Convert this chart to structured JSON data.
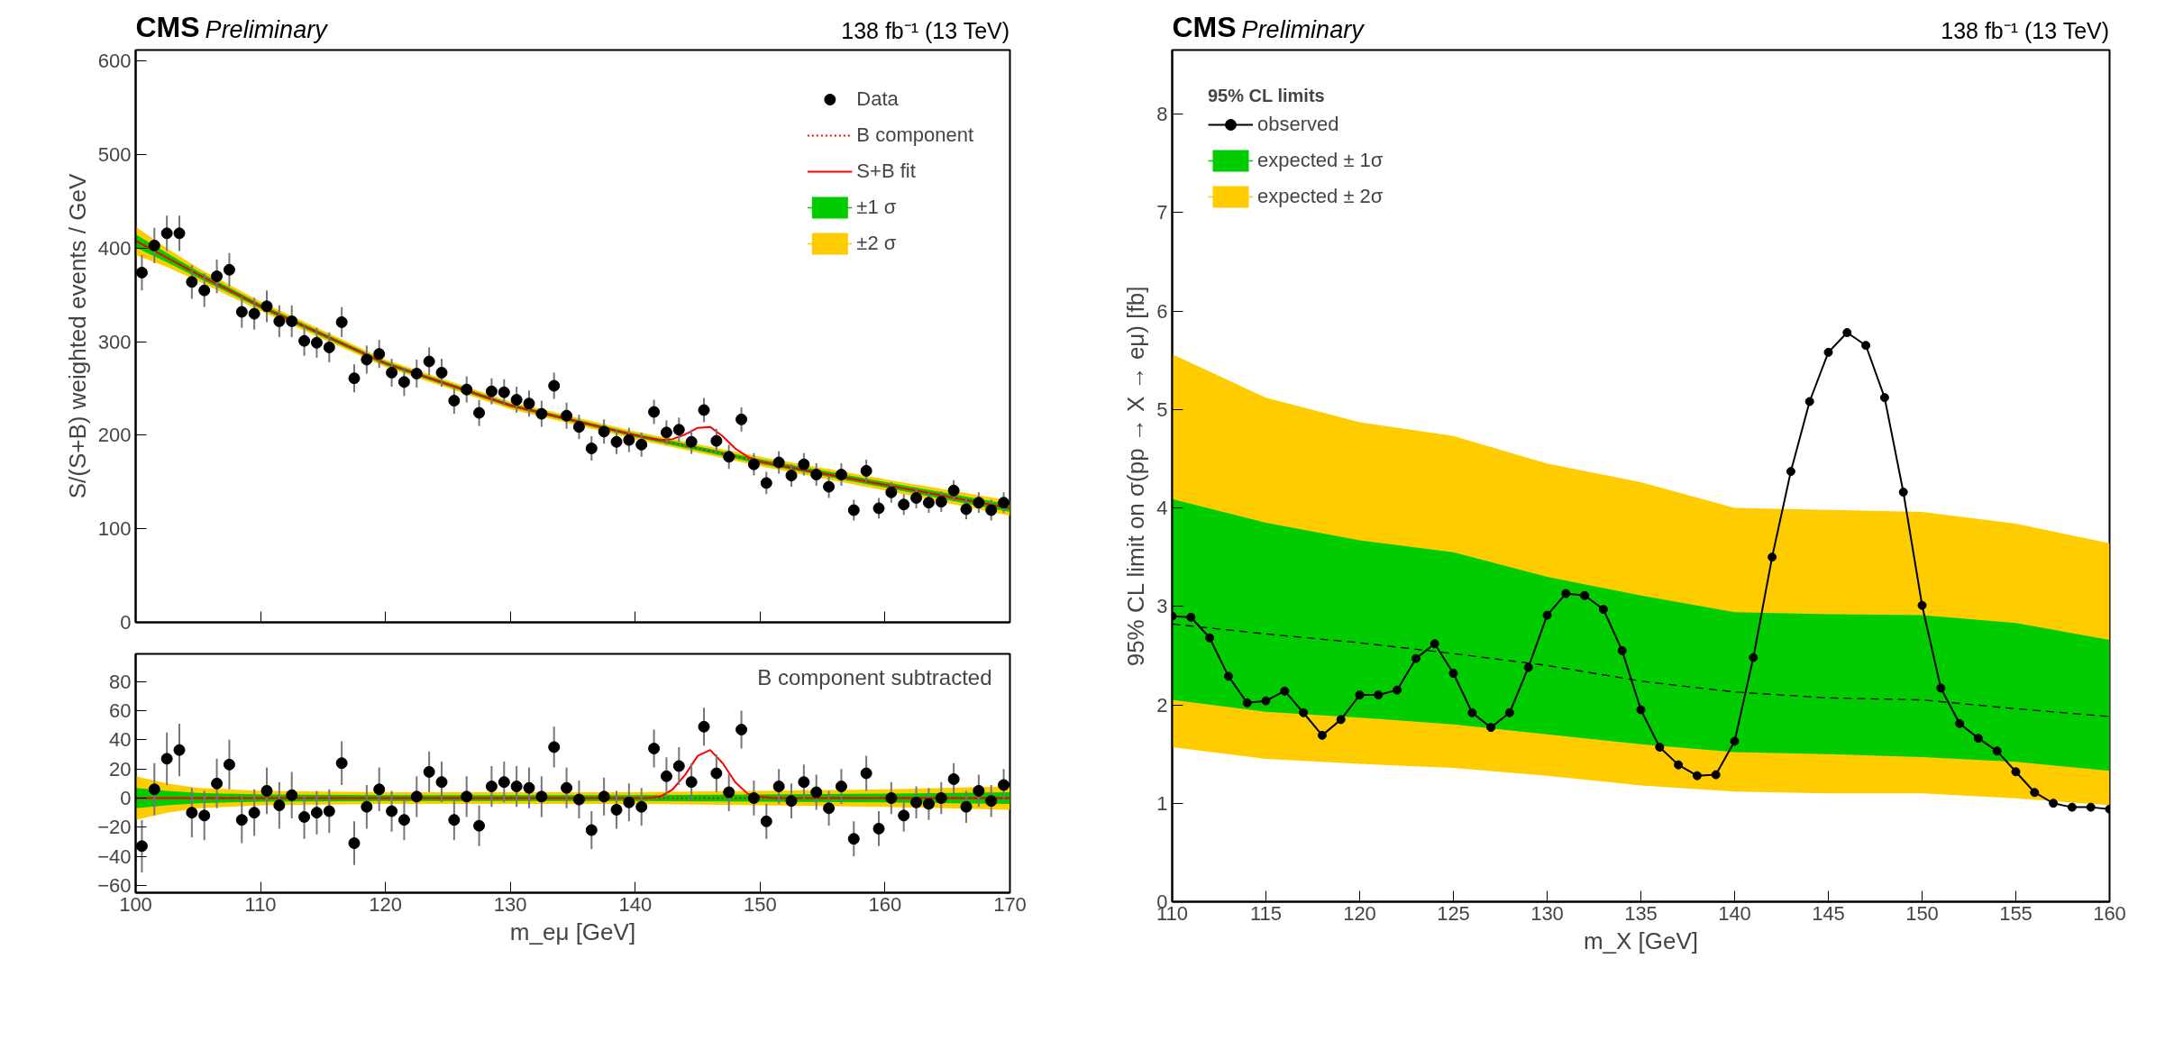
{
  "chart_data": [
    {
      "type": "scatter",
      "title": "CMS",
      "subtitle": "Preliminary",
      "annotations": [
        "138 fb⁻¹ (13 TeV)"
      ],
      "ylabel": "S/(S+B) weighted events / GeV",
      "xlim": [
        100,
        170
      ],
      "ylim": [
        0,
        612
      ],
      "xticks": [
        100,
        110,
        120,
        130,
        140,
        150,
        160,
        170
      ],
      "yticks": [
        0,
        100,
        200,
        300,
        400,
        500,
        600
      ],
      "tick_labels": "y",
      "grid": false,
      "legend": "top right",
      "x": [
        100.5,
        101.5,
        102.5,
        103.5,
        104.5,
        105.5,
        106.5,
        107.5,
        108.5,
        109.5,
        110.5,
        111.5,
        112.5,
        113.5,
        114.5,
        115.5,
        116.5,
        117.5,
        118.5,
        119.5,
        120.5,
        121.5,
        122.5,
        123.5,
        124.5,
        125.5,
        126.5,
        127.5,
        128.5,
        129.5,
        130.5,
        131.5,
        132.5,
        133.5,
        134.5,
        135.5,
        136.5,
        137.5,
        138.5,
        139.5,
        140.5,
        141.5,
        142.5,
        143.5,
        144.5,
        145.5,
        146.5,
        147.5,
        148.5,
        149.5,
        150.5,
        151.5,
        152.5,
        153.5,
        154.5,
        155.5,
        156.5,
        157.5,
        158.5,
        159.5,
        160.5,
        161.5,
        162.5,
        163.5,
        164.5,
        165.5,
        166.5,
        167.5,
        168.5,
        169.5
      ],
      "series": [
        {
          "type": "line",
          "name": "±2 σ",
          "color": "#ffcc00",
          "x": [
            100,
            102.5,
            105,
            110,
            120,
            130,
            140,
            150,
            160,
            170
          ],
          "values": [
            null,
            null,
            null,
            null,
            null,
            null,
            null,
            null,
            null,
            null
          ],
          "lower": [
            393,
            380,
            365,
            333,
            273,
            228,
            196,
            167,
            141,
            114
          ],
          "upper": [
            423,
            400,
            379,
            343,
            281,
            236,
            204,
            177,
            153,
            130
          ]
        },
        {
          "type": "line",
          "name": "±1 σ",
          "color": "#00cc00",
          "x": [
            100,
            102.5,
            105,
            110,
            120,
            130,
            140,
            150,
            160,
            170
          ],
          "values": [
            null,
            null,
            null,
            null,
            null,
            null,
            null,
            null,
            null,
            null
          ],
          "lower": [
            401,
            385,
            368.5,
            335.5,
            275,
            230,
            198,
            169.5,
            144,
            118
          ],
          "upper": [
            415,
            395,
            375.5,
            340.5,
            279,
            234,
            202,
            174.5,
            150,
            126
          ]
        },
        {
          "type": "line",
          "name": "S+B fit",
          "color": "#ff0000",
          "line_style": "solid",
          "x": [
            100,
            102.5,
            105,
            110,
            120,
            130,
            140,
            141,
            142,
            143,
            144,
            145,
            146,
            147,
            148,
            149,
            150,
            151,
            160,
            170
          ],
          "values": [
            408,
            390,
            372,
            338,
            277,
            232,
            200,
            197,
            195,
            196,
            201,
            208,
            209,
            199,
            186,
            177,
            172,
            169,
            147,
            122
          ]
        },
        {
          "type": "line",
          "name": "B component",
          "color": "#ff0000",
          "line_style": "dotted",
          "x": [
            100,
            102.5,
            105,
            110,
            120,
            130,
            140,
            150,
            160,
            170
          ],
          "values": [
            408,
            390,
            372,
            338,
            277,
            232,
            200,
            172,
            147,
            122
          ]
        },
        {
          "name": "Data",
          "color": "#000000",
          "marker": "circle",
          "values": [
            374,
            403,
            416,
            416,
            364,
            355,
            370,
            377,
            332,
            330,
            338,
            322,
            322,
            301,
            299,
            294,
            321,
            261,
            281,
            287,
            267,
            257,
            266,
            279,
            267,
            237,
            249,
            224,
            247,
            246,
            238,
            234,
            223,
            253,
            221,
            209,
            186,
            204,
            193,
            195,
            190,
            225,
            203,
            206,
            193,
            227,
            194,
            177,
            217,
            169,
            149,
            171,
            157,
            169,
            158,
            145,
            158,
            120,
            162,
            122,
            139,
            126,
            133,
            128,
            129,
            141,
            121,
            128,
            120,
            128
          ],
          "errors": [
            19,
            19,
            19,
            19,
            18,
            18,
            18,
            18,
            17,
            17,
            17,
            17,
            17,
            16,
            16,
            16,
            16,
            15,
            15,
            15,
            15,
            15,
            15,
            15,
            15,
            14,
            14,
            14,
            14,
            14,
            14,
            14,
            14,
            14,
            14,
            13,
            13,
            13,
            13,
            13,
            13,
            13,
            13,
            13,
            13,
            13,
            13,
            13,
            13,
            12,
            12,
            12,
            12,
            12,
            12,
            12,
            12,
            11,
            12,
            11,
            11,
            11,
            11,
            11,
            11,
            11,
            11,
            11,
            11,
            11
          ]
        }
      ]
    },
    {
      "type": "scatter",
      "annotations": [
        "B component subtracted"
      ],
      "xlabel": "m_eμ [GeV]",
      "xlim": [
        100,
        170
      ],
      "ylim": [
        -65,
        99
      ],
      "xticks": [
        100,
        110,
        120,
        130,
        140,
        150,
        160,
        170
      ],
      "yticks": [
        -60,
        -40,
        -20,
        0,
        20,
        40,
        60,
        80
      ],
      "grid": false,
      "x": [
        100.5,
        101.5,
        102.5,
        103.5,
        104.5,
        105.5,
        106.5,
        107.5,
        108.5,
        109.5,
        110.5,
        111.5,
        112.5,
        113.5,
        114.5,
        115.5,
        116.5,
        117.5,
        118.5,
        119.5,
        120.5,
        121.5,
        122.5,
        123.5,
        124.5,
        125.5,
        126.5,
        127.5,
        128.5,
        129.5,
        130.5,
        131.5,
        132.5,
        133.5,
        134.5,
        135.5,
        136.5,
        137.5,
        138.5,
        139.5,
        140.5,
        141.5,
        142.5,
        143.5,
        144.5,
        145.5,
        146.5,
        147.5,
        148.5,
        149.5,
        150.5,
        151.5,
        152.5,
        153.5,
        154.5,
        155.5,
        156.5,
        157.5,
        158.5,
        159.5,
        160.5,
        161.5,
        162.5,
        163.5,
        164.5,
        165.5,
        166.5,
        167.5,
        168.5,
        169.5
      ],
      "series": [
        {
          "type": "line",
          "color": "#ffcc00",
          "x": [
            100,
            102.5,
            105,
            110,
            120,
            130,
            140,
            150,
            160,
            170
          ],
          "values": [
            null,
            null,
            null,
            null,
            null,
            null,
            null,
            null,
            null,
            null
          ],
          "lower": [
            -15,
            -10,
            -7,
            -5,
            -4,
            -4,
            -4,
            -5,
            -6,
            -8
          ],
          "upper": [
            15,
            10,
            7,
            5,
            4,
            4,
            4,
            5,
            6,
            8
          ]
        },
        {
          "type": "line",
          "color": "#00cc00",
          "x": [
            100,
            102.5,
            105,
            110,
            120,
            130,
            140,
            150,
            160,
            170
          ],
          "values": [
            null,
            null,
            null,
            null,
            null,
            null,
            null,
            null,
            null,
            null
          ],
          "lower": [
            -7,
            -5,
            -3.5,
            -2.5,
            -2,
            -2,
            -2,
            -2.5,
            -3,
            -4
          ],
          "upper": [
            7,
            5,
            3.5,
            2.5,
            2,
            2,
            2,
            2.5,
            3,
            4
          ]
        },
        {
          "type": "line",
          "color": "#ff0000",
          "line_style": "solid",
          "x": [
            100,
            140,
            141,
            142,
            143,
            144,
            145,
            146,
            147,
            148,
            149,
            150,
            151,
            170
          ],
          "values": [
            0,
            0,
            0,
            1,
            6,
            16,
            29,
            33,
            24,
            11,
            3,
            1,
            0,
            0
          ]
        },
        {
          "type": "line",
          "color": "#ff0000",
          "line_style": "dotted",
          "x": [
            100,
            170
          ],
          "values": [
            0,
            0
          ]
        },
        {
          "color": "#000000",
          "marker": "circle",
          "values": [
            -33,
            6,
            27,
            33,
            -10,
            -12,
            10,
            23,
            -15,
            -10,
            5,
            -5,
            2,
            -13,
            -10,
            -9,
            24,
            -31,
            -6,
            6,
            -9,
            -15,
            1,
            18,
            11,
            -15,
            1,
            -19,
            8,
            11,
            8,
            7,
            1,
            35,
            7,
            -1,
            -22,
            1,
            -8,
            -3,
            -6,
            34,
            15,
            22,
            11,
            49,
            17,
            4,
            47,
            0,
            -16,
            8,
            -2,
            11,
            4,
            -7,
            8,
            -28,
            17,
            -21,
            0,
            -12,
            -3,
            -4,
            0,
            13,
            -6,
            5,
            -2,
            9
          ],
          "errors": [
            18,
            18,
            18,
            18,
            17,
            17,
            17,
            17,
            16,
            16,
            16,
            16,
            16,
            15,
            15,
            15,
            15,
            15,
            15,
            15,
            14,
            14,
            14,
            14,
            14,
            14,
            14,
            14,
            14,
            14,
            14,
            14,
            14,
            14,
            14,
            13,
            13,
            13,
            13,
            13,
            13,
            13,
            13,
            13,
            13,
            13,
            13,
            13,
            13,
            12,
            12,
            12,
            12,
            12,
            12,
            12,
            12,
            12,
            12,
            12,
            11,
            11,
            11,
            11,
            11,
            11,
            11,
            11,
            11,
            11
          ]
        }
      ]
    },
    {
      "type": "line",
      "title": "CMS",
      "subtitle": "Preliminary",
      "annotations": [
        "138 fb⁻¹ (13 TeV)"
      ],
      "ylabel": "95% CL limit on σ(pp → X → eμ) [fb]",
      "xlabel": "m_X [GeV]",
      "legend_title": "95% CL limits",
      "xlim": [
        110,
        160
      ],
      "ylim": [
        0,
        8.65
      ],
      "xticks": [
        110,
        115,
        120,
        125,
        130,
        135,
        140,
        145,
        150,
        155,
        160
      ],
      "yticks": [
        0,
        1,
        2,
        3,
        4,
        5,
        6,
        7,
        8
      ],
      "grid": false,
      "legend": "top left",
      "series": [
        {
          "type": "line",
          "name": "expected ± 2σ",
          "color": "#ffcc00",
          "x": [
            110,
            115,
            120,
            125,
            130,
            135,
            140,
            145,
            150,
            155,
            160
          ],
          "values": [
            null,
            null,
            null,
            null,
            null,
            null,
            null,
            null,
            null,
            null,
            null
          ],
          "lower": [
            1.57,
            1.45,
            1.4,
            1.36,
            1.28,
            1.18,
            1.12,
            1.1,
            1.1,
            1.05,
            0.98
          ],
          "upper": [
            5.56,
            5.12,
            4.87,
            4.73,
            4.45,
            4.26,
            4.0,
            3.98,
            3.96,
            3.84,
            3.64
          ]
        },
        {
          "type": "line",
          "name": "expected ± 1σ",
          "color": "#00cc00",
          "x": [
            110,
            115,
            120,
            125,
            130,
            135,
            140,
            145,
            150,
            155,
            160
          ],
          "values": [
            null,
            null,
            null,
            null,
            null,
            null,
            null,
            null,
            null,
            null,
            null
          ],
          "lower": [
            2.05,
            1.93,
            1.87,
            1.8,
            1.7,
            1.6,
            1.52,
            1.5,
            1.47,
            1.42,
            1.33
          ],
          "upper": [
            4.09,
            3.85,
            3.67,
            3.55,
            3.3,
            3.11,
            2.94,
            2.92,
            2.91,
            2.83,
            2.66
          ]
        },
        {
          "color": "#000000",
          "line_style": "dashed",
          "x": [
            110,
            115,
            120,
            125,
            130,
            135,
            140,
            145,
            150,
            155,
            160
          ],
          "values": [
            2.82,
            2.72,
            2.63,
            2.52,
            2.4,
            2.24,
            2.13,
            2.07,
            2.05,
            1.96,
            1.88
          ]
        },
        {
          "name": "observed",
          "color": "#000000",
          "line_style": "solid",
          "marker": "circle",
          "x": [
            110,
            111,
            112,
            113,
            114,
            115,
            116,
            117,
            118,
            119,
            120,
            121,
            122,
            123,
            124,
            125,
            126,
            127,
            128,
            129,
            130,
            131,
            132,
            133,
            134,
            135,
            136,
            137,
            138,
            139,
            140,
            141,
            142,
            143,
            144,
            145,
            146,
            147,
            148,
            149,
            150,
            151,
            152,
            153,
            154,
            155,
            156,
            157,
            158,
            159,
            160
          ],
          "values": [
            2.9,
            2.89,
            2.68,
            2.29,
            2.02,
            2.04,
            2.14,
            1.92,
            1.69,
            1.85,
            2.1,
            2.1,
            2.15,
            2.47,
            2.62,
            2.32,
            1.92,
            1.77,
            1.92,
            2.38,
            2.91,
            3.13,
            3.11,
            2.97,
            2.55,
            1.95,
            1.57,
            1.39,
            1.28,
            1.29,
            1.63,
            2.48,
            3.5,
            4.37,
            5.08,
            5.58,
            5.78,
            5.65,
            5.12,
            4.16,
            3.01,
            2.17,
            1.81,
            1.66,
            1.53,
            1.32,
            1.11,
            1.0,
            0.96,
            0.96,
            0.94
          ]
        }
      ]
    }
  ]
}
